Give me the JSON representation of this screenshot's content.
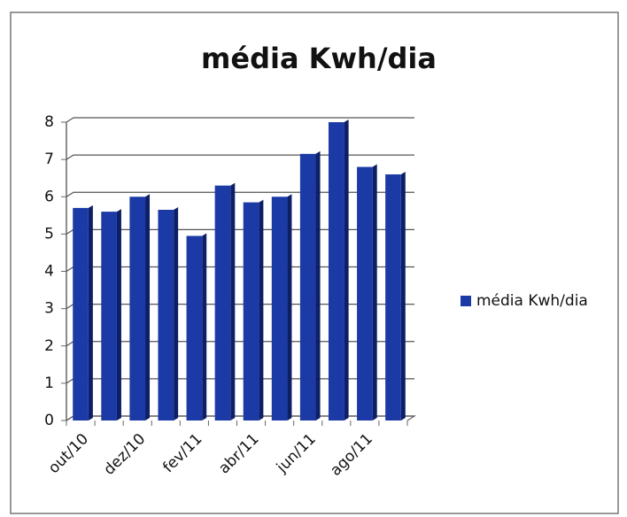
{
  "chart_data": {
    "type": "bar",
    "title": "média Kwh/dia",
    "categories": [
      "out/10",
      null,
      "dez/10",
      null,
      "fev/11",
      null,
      "abr/11",
      null,
      "jun/11",
      null,
      "ago/11",
      null
    ],
    "series": [
      {
        "name": "média Kwh/dia",
        "color": "#1c3aa6",
        "values": [
          5.7,
          5.6,
          6.0,
          5.65,
          4.95,
          6.3,
          5.85,
          6.0,
          7.15,
          8.0,
          6.8,
          6.6
        ]
      }
    ],
    "ylim": [
      0,
      8
    ],
    "yticks": [
      0,
      1,
      2,
      3,
      4,
      5,
      6,
      7,
      8
    ],
    "grid": true,
    "legend": "right"
  }
}
